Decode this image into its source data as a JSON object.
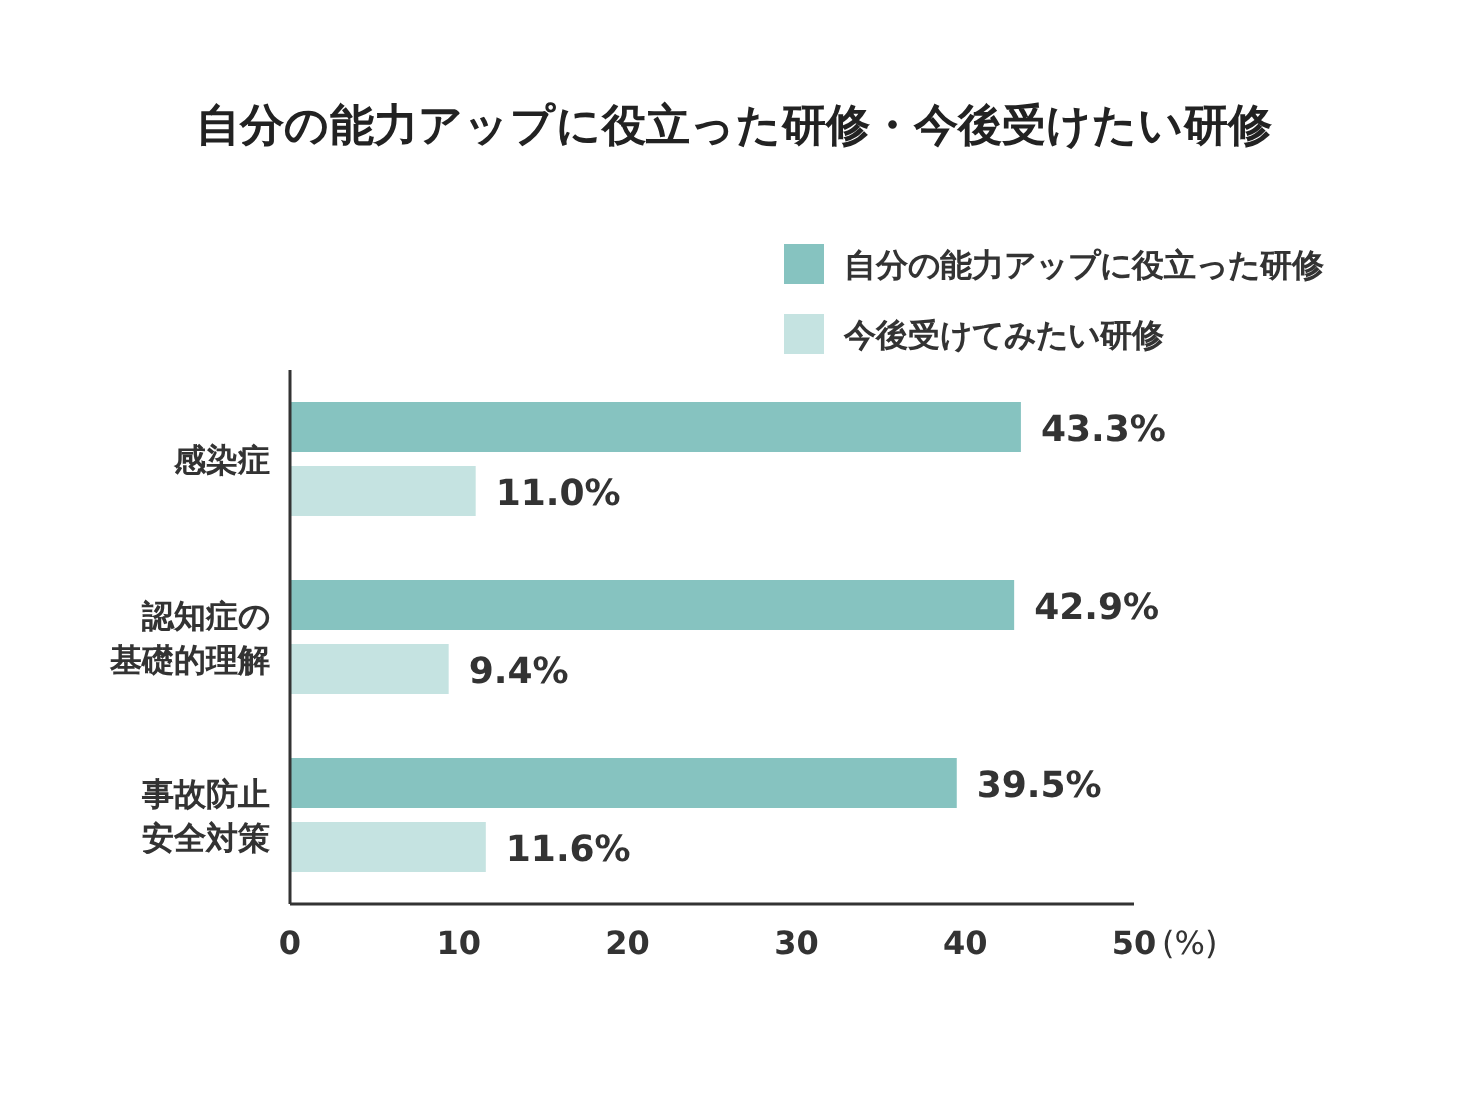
{
  "chart_data": {
    "type": "bar",
    "orientation": "horizontal",
    "title": "自分の能力アップに役立った研修・今後受けたい研修",
    "categories": [
      "感染症",
      "認知症の基礎的理解",
      "事故防止安全対策"
    ],
    "series": [
      {
        "name": "自分の能力アップに役立った研修",
        "color": "#86c3c0",
        "values": [
          43.3,
          42.9,
          39.5
        ],
        "value_labels": [
          "43.3%",
          "42.9%",
          "39.5%"
        ]
      },
      {
        "name": "今後受けてみたい研修",
        "color": "#c5e3e1",
        "values": [
          11.0,
          9.4,
          11.6
        ],
        "value_labels": [
          "11.0%",
          "9.4%",
          "11.6%"
        ]
      }
    ],
    "xlabel": "(%)",
    "xlim": [
      0,
      50
    ],
    "xticks": [
      0,
      10,
      20,
      30,
      40,
      50
    ],
    "legend": "top right",
    "grid": false
  }
}
